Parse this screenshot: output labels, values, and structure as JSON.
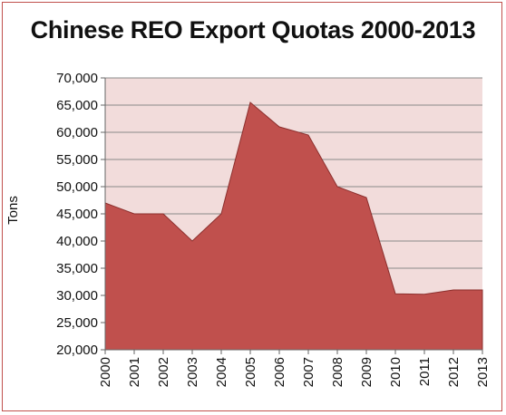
{
  "chart_data": {
    "type": "area",
    "title": "Chinese REO Export Quotas 2000-2013",
    "xlabel": "",
    "ylabel": "Tons",
    "x": [
      "2000",
      "2001",
      "2002",
      "2003",
      "2004",
      "2005",
      "2006",
      "2007",
      "2008",
      "2009",
      "2010",
      "2011",
      "2012",
      "2013"
    ],
    "series": [
      {
        "values": [
          47000,
          45000,
          45000,
          40000,
          45000,
          65500,
          61000,
          59500,
          50000,
          48000,
          30300,
          30200,
          31000,
          31000
        ]
      }
    ],
    "ylim": [
      20000,
      70000
    ],
    "yticks": [
      "20,000",
      "25,000",
      "30,000",
      "35,000",
      "40,000",
      "45,000",
      "50,000",
      "55,000",
      "60,000",
      "65,000",
      "70,000"
    ],
    "grid": true,
    "colors": {
      "plot_background": "#f2dcdb",
      "area_fill": "#c0504d",
      "area_stroke": "#8c2f2d",
      "gridline": "#8a8a8a",
      "frame_border": "#c0504d"
    }
  }
}
